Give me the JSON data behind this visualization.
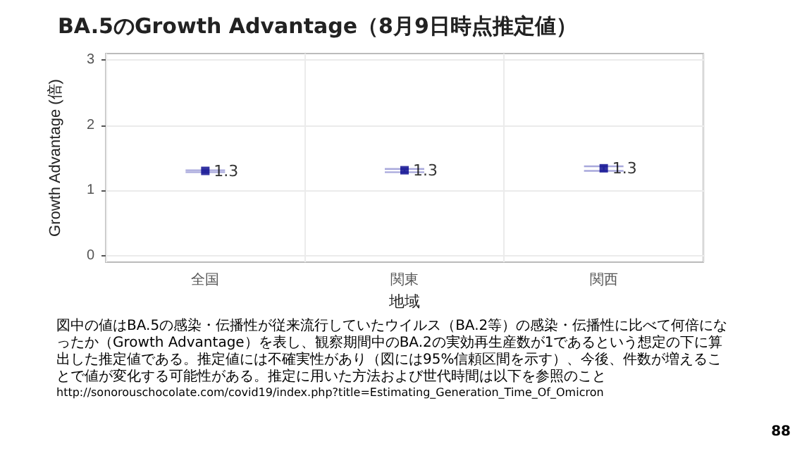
{
  "chart_data": {
    "type": "scatter",
    "title": "BA.5のGrowth Advantage（8月9日時点推定値）",
    "xlabel": "地域",
    "ylabel": "Growth Advantage (倍)",
    "categories": [
      "全国",
      "関東",
      "関西"
    ],
    "series": [
      {
        "color": "#00008b",
        "values": [
          1.3,
          1.31,
          1.34
        ],
        "errors": [
          [
            1.28,
            1.31
          ],
          [
            1.28,
            1.33
          ],
          [
            1.3,
            1.37
          ]
        ],
        "value_labels": [
          "1.3",
          "1.3",
          "1.3"
        ]
      }
    ],
    "ylim": [
      -0.1,
      3.1
    ],
    "yticks": [
      0,
      1,
      2,
      3
    ],
    "grid": true,
    "marker": "square",
    "annotations": [
      "図中の値はBA.5の感染・伝播性が従来流行していたウイルス（BA.2等）の感染・伝播性に比べて何倍になったか（Growth Advantage）を表し、観察期間中のBA.2の実効再生産数が1であるという想定の下に算出した推定値である。推定値には不確実性があり（図には95%信頼区間を示す）、今後、件数が増えることで値が変化する可能性がある。推定に用いた方法および世代時間は以下を参照のこと",
      "http://sonorouschocolate.com/covid19/index.php?title=Estimating_Generation_Time_Of_Omicron",
      "88"
    ]
  }
}
